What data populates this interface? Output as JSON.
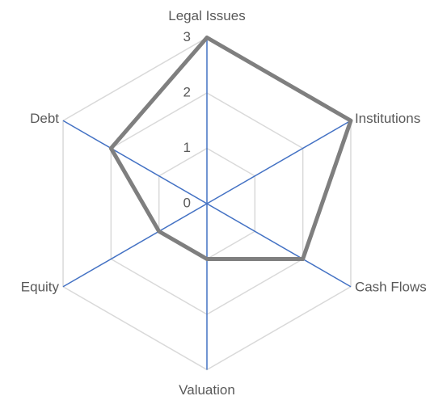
{
  "chart_data": {
    "type": "radar",
    "categories": [
      "Legal Issues",
      "Institutions",
      "Cash Flows",
      "Valuation",
      "Equity",
      "Debt"
    ],
    "series": [
      {
        "color": "#7f7f7f",
        "values": [
          3,
          3,
          2,
          1,
          1,
          2
        ]
      }
    ],
    "ylim": [
      0,
      3
    ],
    "yticks": [
      0,
      1,
      2,
      3
    ],
    "grid": true,
    "axis_color": "#4472c4"
  }
}
